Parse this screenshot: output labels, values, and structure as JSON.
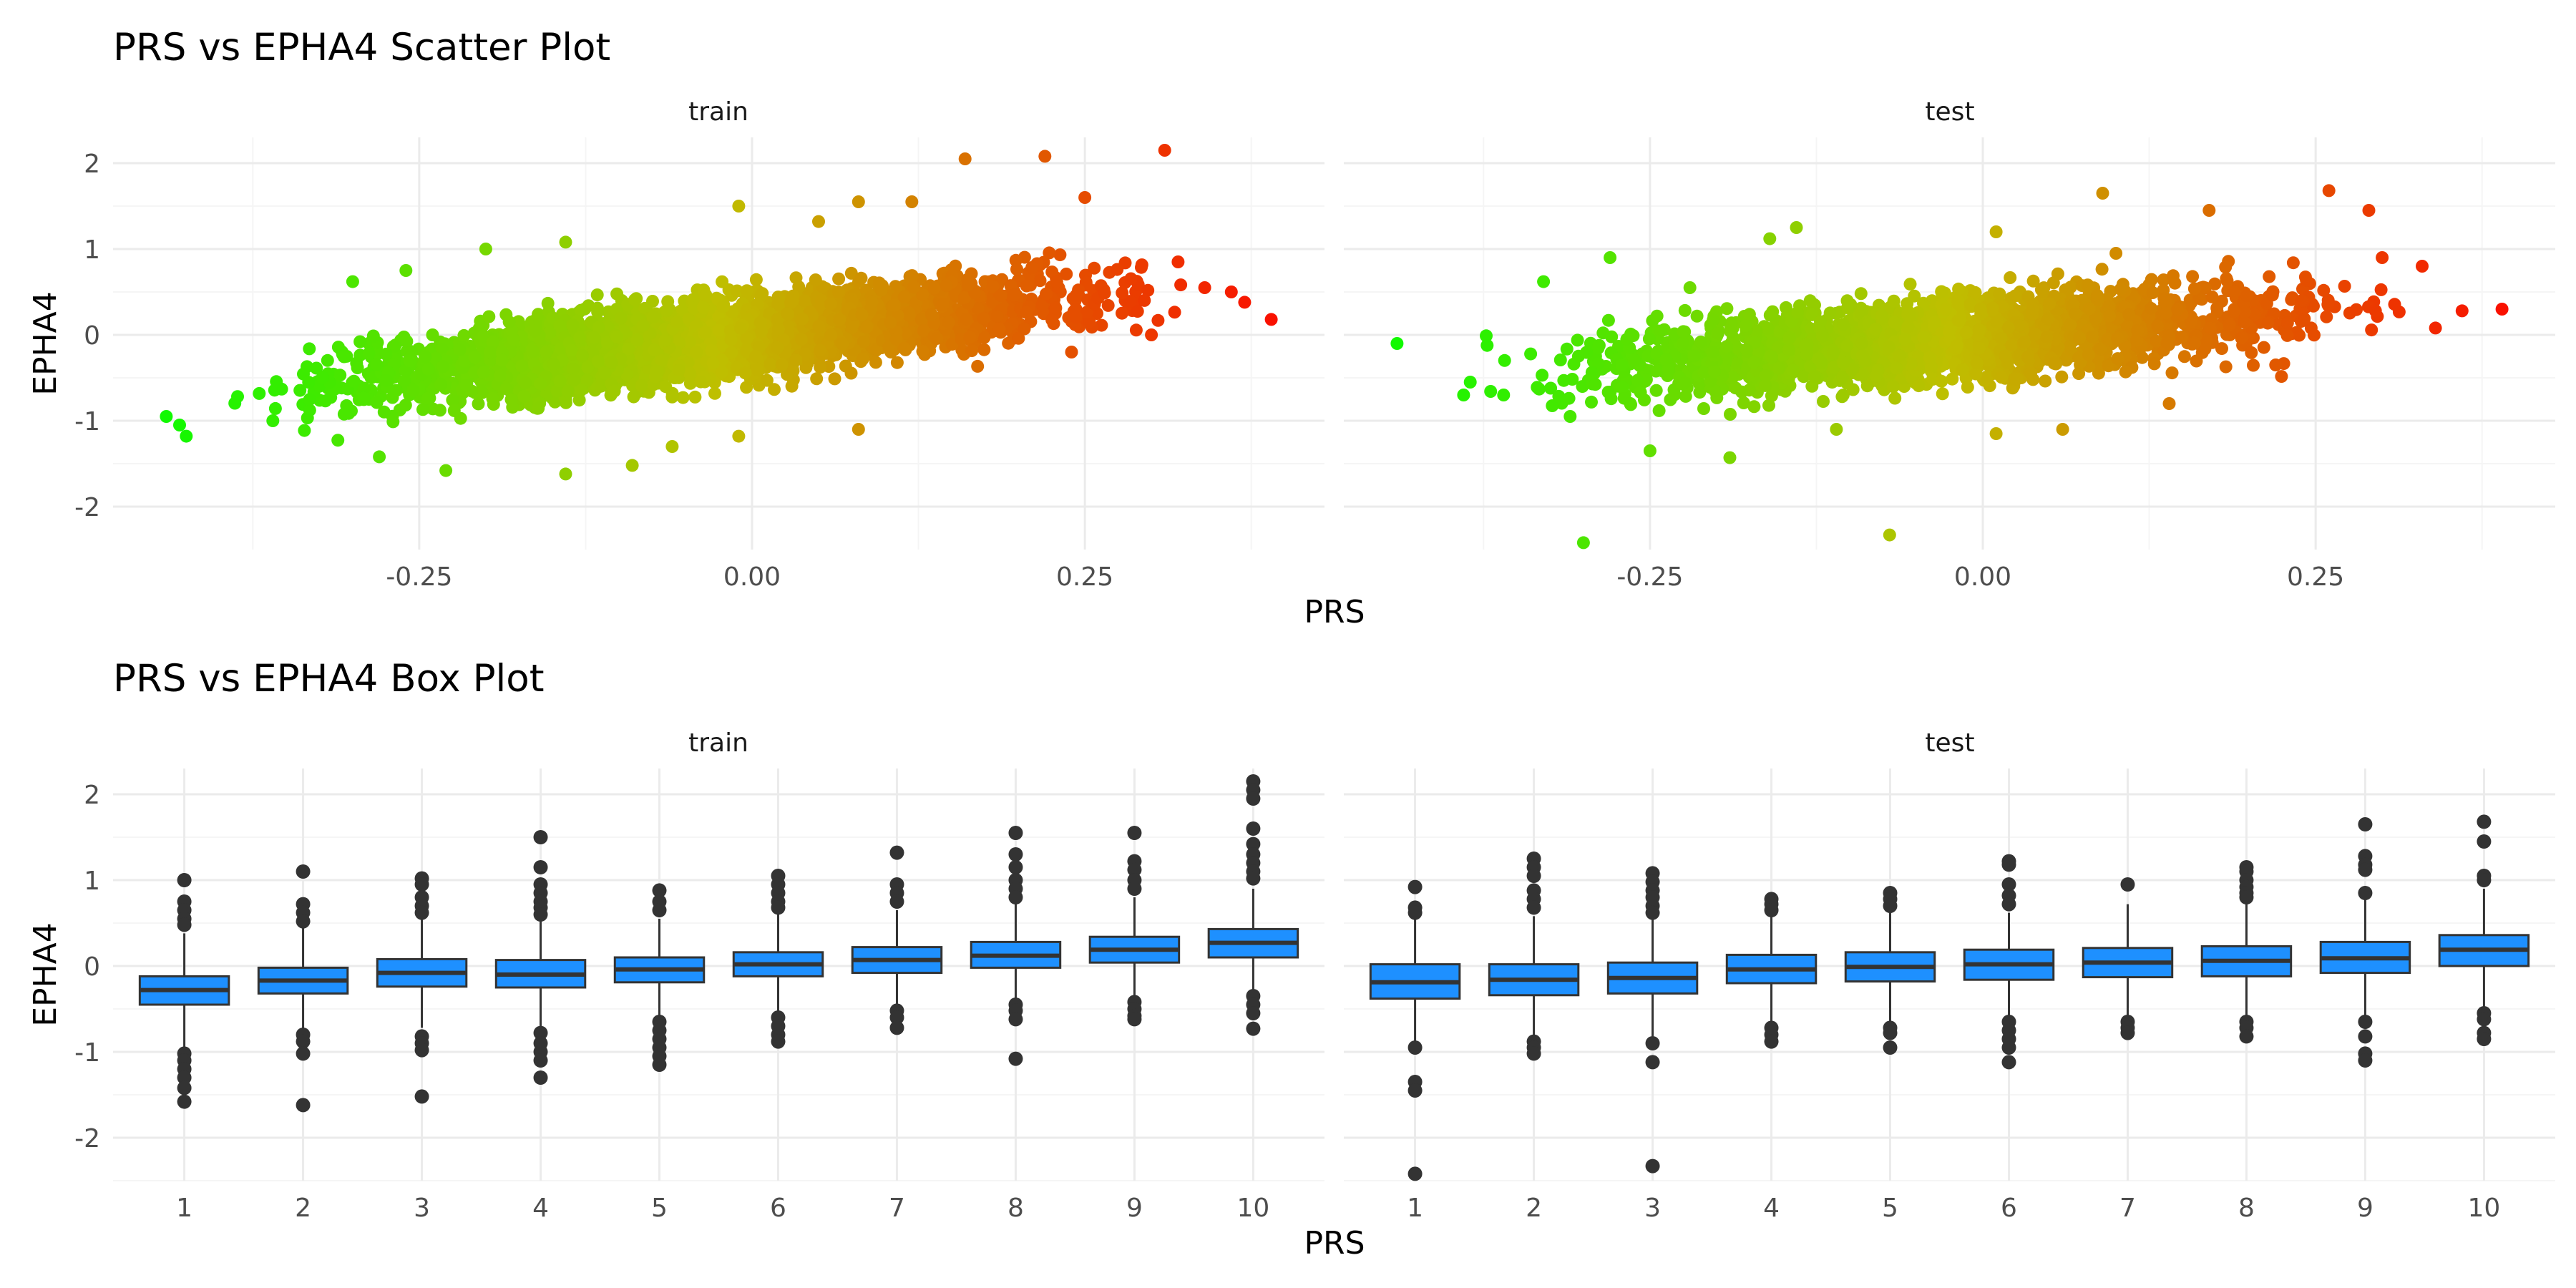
{
  "colors": {
    "low": "#00ff00",
    "mid": "#bfbf00",
    "high": "#ff0000",
    "box_fill": "#1e90ff",
    "box_line": "#333333",
    "grid_major": "#ebebeb",
    "grid_minor": "#f5f5f5"
  },
  "chart_data": [
    {
      "type": "scatter",
      "title": "PRS vs EPHA4 Scatter Plot",
      "xlabel": "PRS",
      "ylabel": "EPHA4",
      "xlim": [
        -0.48,
        0.43
      ],
      "ylim": [
        -2.5,
        2.3
      ],
      "xticks": [
        -0.25,
        0.0,
        0.25
      ],
      "xtick_labels": [
        "-0.25",
        "0.00",
        "0.25"
      ],
      "yticks": [
        -2,
        -1,
        0,
        1,
        2
      ],
      "ytick_labels": [
        "-2",
        "-1",
        "0",
        "1",
        "2"
      ],
      "color_scale": "PRS, green (low) to red (high)",
      "grid": true,
      "facets": [
        {
          "label": "train",
          "trend": {
            "slope": 1.75,
            "intercept": 0.0,
            "x_range": [
              -0.42,
              0.36
            ],
            "spread_sd": 0.23
          },
          "points": [
            {
              "x": -0.44,
              "y": -0.95
            },
            {
              "x": -0.43,
              "y": -1.05
            },
            {
              "x": -0.425,
              "y": -1.18
            },
            {
              "x": -0.36,
              "y": -1.0
            },
            {
              "x": -0.28,
              "y": -1.42
            },
            {
              "x": -0.23,
              "y": -1.58
            },
            {
              "x": -0.14,
              "y": -1.62
            },
            {
              "x": -0.09,
              "y": -1.52
            },
            {
              "x": -0.06,
              "y": -1.3
            },
            {
              "x": -0.01,
              "y": -1.18
            },
            {
              "x": 0.08,
              "y": -1.1
            },
            {
              "x": -0.3,
              "y": 0.62
            },
            {
              "x": -0.26,
              "y": 0.75
            },
            {
              "x": -0.2,
              "y": 1.0
            },
            {
              "x": -0.14,
              "y": 1.08
            },
            {
              "x": -0.01,
              "y": 1.5
            },
            {
              "x": 0.05,
              "y": 1.32
            },
            {
              "x": 0.08,
              "y": 1.55
            },
            {
              "x": 0.12,
              "y": 1.55
            },
            {
              "x": 0.16,
              "y": 2.05
            },
            {
              "x": 0.22,
              "y": 2.08
            },
            {
              "x": 0.25,
              "y": 1.6
            },
            {
              "x": 0.31,
              "y": 2.15
            },
            {
              "x": 0.37,
              "y": 0.38
            },
            {
              "x": 0.39,
              "y": 0.18
            },
            {
              "x": 0.32,
              "y": 0.85
            },
            {
              "x": 0.34,
              "y": 0.55
            },
            {
              "x": 0.36,
              "y": 0.5
            },
            {
              "x": 0.24,
              "y": -0.2
            },
            {
              "x": 0.3,
              "y": 0.0
            }
          ]
        },
        {
          "label": "test",
          "trend": {
            "slope": 1.3,
            "intercept": -0.02,
            "x_range": [
              -0.4,
              0.34
            ],
            "spread_sd": 0.24
          },
          "points": [
            {
              "x": -0.44,
              "y": -0.1
            },
            {
              "x": -0.39,
              "y": -0.7
            },
            {
              "x": -0.385,
              "y": -0.55
            },
            {
              "x": -0.36,
              "y": -0.7
            },
            {
              "x": -0.31,
              "y": -0.95
            },
            {
              "x": -0.3,
              "y": -2.42
            },
            {
              "x": -0.25,
              "y": -1.35
            },
            {
              "x": -0.19,
              "y": -1.43
            },
            {
              "x": -0.07,
              "y": -2.33
            },
            {
              "x": -0.11,
              "y": -1.1
            },
            {
              "x": 0.01,
              "y": -1.15
            },
            {
              "x": 0.06,
              "y": -1.1
            },
            {
              "x": -0.33,
              "y": 0.62
            },
            {
              "x": -0.28,
              "y": 0.9
            },
            {
              "x": -0.16,
              "y": 1.12
            },
            {
              "x": -0.14,
              "y": 1.25
            },
            {
              "x": 0.01,
              "y": 1.2
            },
            {
              "x": 0.09,
              "y": 1.65
            },
            {
              "x": 0.17,
              "y": 1.45
            },
            {
              "x": 0.26,
              "y": 1.68
            },
            {
              "x": 0.29,
              "y": 1.45
            },
            {
              "x": 0.36,
              "y": 0.28
            },
            {
              "x": 0.39,
              "y": 0.3
            },
            {
              "x": 0.34,
              "y": 0.08
            },
            {
              "x": 0.33,
              "y": 0.8
            },
            {
              "x": 0.3,
              "y": 0.9
            },
            {
              "x": 0.22,
              "y": -0.35
            },
            {
              "x": 0.1,
              "y": 0.95
            },
            {
              "x": -0.22,
              "y": 0.55
            },
            {
              "x": 0.14,
              "y": -0.8
            }
          ]
        }
      ]
    },
    {
      "type": "box",
      "title": "PRS vs EPHA4 Box Plot",
      "xlabel": "PRS",
      "ylabel": "EPHA4",
      "categories": [
        "1",
        "2",
        "3",
        "4",
        "5",
        "6",
        "7",
        "8",
        "9",
        "10"
      ],
      "ylim": [
        -2.5,
        2.3
      ],
      "yticks": [
        -2,
        -1,
        0,
        1,
        2
      ],
      "ytick_labels": [
        "-2",
        "-1",
        "0",
        "1",
        "2"
      ],
      "grid": true,
      "facets": [
        {
          "label": "train",
          "boxes": [
            {
              "q1": -0.45,
              "median": -0.28,
              "q3": -0.12,
              "lower": -0.95,
              "upper": 0.38,
              "outliers": [
                1.0,
                0.75,
                0.65,
                0.55,
                0.48,
                -1.02,
                -1.1,
                -1.2,
                -1.3,
                -1.42,
                -1.58
              ]
            },
            {
              "q1": -0.32,
              "median": -0.17,
              "q3": -0.02,
              "lower": -0.78,
              "upper": 0.45,
              "outliers": [
                1.1,
                0.72,
                0.62,
                0.52,
                -0.8,
                -0.88,
                -1.02,
                -1.62
              ]
            },
            {
              "q1": -0.24,
              "median": -0.08,
              "q3": 0.08,
              "lower": -0.72,
              "upper": 0.55,
              "outliers": [
                1.02,
                0.95,
                0.8,
                0.7,
                0.62,
                -0.82,
                -0.9,
                -0.98,
                -1.52
              ]
            },
            {
              "q1": -0.25,
              "median": -0.1,
              "q3": 0.07,
              "lower": -0.72,
              "upper": 0.52,
              "outliers": [
                1.5,
                1.15,
                0.95,
                0.85,
                0.75,
                0.68,
                0.6,
                -0.78,
                -0.9,
                -1.0,
                -1.1,
                -1.3
              ]
            },
            {
              "q1": -0.19,
              "median": -0.04,
              "q3": 0.1,
              "lower": -0.58,
              "upper": 0.55,
              "outliers": [
                0.88,
                0.75,
                0.65,
                -0.65,
                -0.75,
                -0.85,
                -0.95,
                -1.05,
                -1.15
              ]
            },
            {
              "q1": -0.12,
              "median": 0.02,
              "q3": 0.16,
              "lower": -0.55,
              "upper": 0.6,
              "outliers": [
                1.05,
                0.95,
                0.85,
                0.75,
                0.68,
                -0.6,
                -0.7,
                -0.8,
                -0.88
              ]
            },
            {
              "q1": -0.08,
              "median": 0.07,
              "q3": 0.22,
              "lower": -0.5,
              "upper": 0.65,
              "outliers": [
                1.32,
                0.95,
                0.85,
                0.75,
                -0.52,
                -0.6,
                -0.72
              ]
            },
            {
              "q1": -0.02,
              "median": 0.12,
              "q3": 0.28,
              "lower": -0.42,
              "upper": 0.72,
              "outliers": [
                1.55,
                1.3,
                1.15,
                1.0,
                0.9,
                0.8,
                -0.45,
                -0.52,
                -0.62,
                -1.08
              ]
            },
            {
              "q1": 0.04,
              "median": 0.19,
              "q3": 0.34,
              "lower": -0.38,
              "upper": 0.8,
              "outliers": [
                1.55,
                1.22,
                1.12,
                1.0,
                0.9,
                -0.42,
                -0.5,
                -0.58,
                -0.62
              ]
            },
            {
              "q1": 0.1,
              "median": 0.27,
              "q3": 0.43,
              "lower": -0.3,
              "upper": 0.9,
              "outliers": [
                2.15,
                2.05,
                1.95,
                1.6,
                1.42,
                1.3,
                1.2,
                1.1,
                1.02,
                -0.35,
                -0.45,
                -0.55,
                -0.73
              ]
            }
          ]
        },
        {
          "label": "test",
          "boxes": [
            {
              "q1": -0.38,
              "median": -0.19,
              "q3": 0.02,
              "lower": -0.9,
              "upper": 0.55,
              "outliers": [
                0.92,
                0.68,
                0.62,
                -0.95,
                -1.35,
                -1.45,
                -2.42
              ]
            },
            {
              "q1": -0.34,
              "median": -0.16,
              "q3": 0.02,
              "lower": -0.82,
              "upper": 0.58,
              "outliers": [
                1.25,
                1.15,
                1.05,
                0.88,
                0.78,
                0.68,
                -0.88,
                -0.95,
                -1.02
              ]
            },
            {
              "q1": -0.32,
              "median": -0.14,
              "q3": 0.04,
              "lower": -0.82,
              "upper": 0.55,
              "outliers": [
                1.08,
                0.98,
                0.88,
                0.8,
                0.7,
                0.62,
                -0.9,
                -1.12,
                -2.33
              ]
            },
            {
              "q1": -0.2,
              "median": -0.04,
              "q3": 0.13,
              "lower": -0.68,
              "upper": 0.6,
              "outliers": [
                0.78,
                0.72,
                0.65,
                -0.72,
                -0.8,
                -0.88
              ]
            },
            {
              "q1": -0.18,
              "median": -0.01,
              "q3": 0.16,
              "lower": -0.68,
              "upper": 0.62,
              "outliers": [
                0.85,
                0.78,
                0.7,
                -0.72,
                -0.78,
                -0.95
              ]
            },
            {
              "q1": -0.16,
              "median": 0.02,
              "q3": 0.19,
              "lower": -0.6,
              "upper": 0.62,
              "outliers": [
                1.22,
                1.18,
                0.95,
                0.82,
                0.72,
                -0.65,
                -0.75,
                -0.85,
                -0.95,
                -1.12
              ]
            },
            {
              "q1": -0.13,
              "median": 0.04,
              "q3": 0.21,
              "lower": -0.6,
              "upper": 0.72,
              "outliers": [
                0.95,
                -0.65,
                -0.72,
                -0.78
              ]
            },
            {
              "q1": -0.12,
              "median": 0.06,
              "q3": 0.23,
              "lower": -0.62,
              "upper": 0.75,
              "outliers": [
                1.15,
                1.1,
                1.0,
                0.92,
                0.85,
                0.8,
                -0.65,
                -0.72,
                -0.82
              ]
            },
            {
              "q1": -0.08,
              "median": 0.09,
              "q3": 0.28,
              "lower": -0.58,
              "upper": 0.8,
              "outliers": [
                1.65,
                1.28,
                1.18,
                1.12,
                0.85,
                -0.65,
                -0.82,
                -1.02,
                -1.1
              ]
            },
            {
              "q1": 0.0,
              "median": 0.19,
              "q3": 0.36,
              "lower": -0.5,
              "upper": 0.9,
              "outliers": [
                1.68,
                1.45,
                1.05,
                1.0,
                -0.55,
                -0.62,
                -0.78,
                -0.85
              ]
            }
          ]
        }
      ]
    }
  ]
}
